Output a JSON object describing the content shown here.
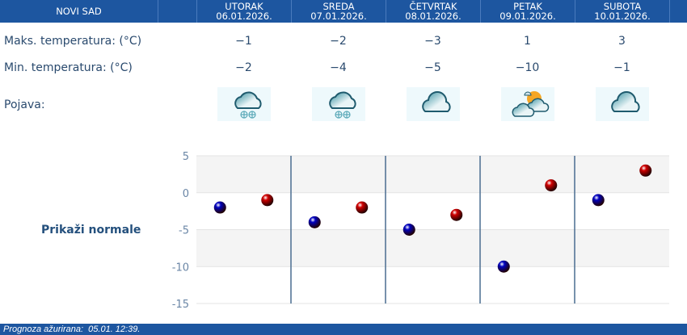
{
  "header": {
    "city": "NOVI SAD"
  },
  "days": [
    {
      "name": "UTORAK",
      "date": "06.01.2026.",
      "max": "−1",
      "min": "−2",
      "icon": "snow-cloud"
    },
    {
      "name": "SREDA",
      "date": "07.01.2026.",
      "max": "−2",
      "min": "−4",
      "icon": "snow-cloud"
    },
    {
      "name": "ČETVRTAK",
      "date": "08.01.2026.",
      "max": "−3",
      "min": "−5",
      "icon": "cloud"
    },
    {
      "name": "PETAK",
      "date": "09.01.2026.",
      "max": "1",
      "min": "−10",
      "icon": "partly-cloudy"
    },
    {
      "name": "SUBOTA",
      "date": "10.01.2026.",
      "max": "3",
      "min": "−1",
      "icon": "cloud"
    }
  ],
  "labels": {
    "max": "Maks. temperatura: (°C)",
    "min": "Min. temperatura: (°C)",
    "phenomenon": "Pojava:",
    "show_normals": "Prikaži normale"
  },
  "footer": {
    "updated": "Prognoza ažurirana:  05.01. 12:39."
  },
  "colors": {
    "header": "#1d56a0",
    "min_dot": "#0000c0",
    "max_dot": "#d00000"
  },
  "chart_data": {
    "type": "scatter",
    "categories": [
      "06.01.2026.",
      "07.01.2026.",
      "08.01.2026.",
      "09.01.2026.",
      "10.01.2026."
    ],
    "series": [
      {
        "values": [
          -2,
          -4,
          -5,
          -10,
          -1
        ],
        "color": "#0000c0"
      },
      {
        "values": [
          -1,
          -2,
          -3,
          1,
          3
        ],
        "color": "#d00000"
      }
    ],
    "ylim": [
      -15,
      5
    ],
    "yticks": [
      "5",
      "0",
      "-5",
      "-10",
      "-15"
    ],
    "grid": true
  }
}
